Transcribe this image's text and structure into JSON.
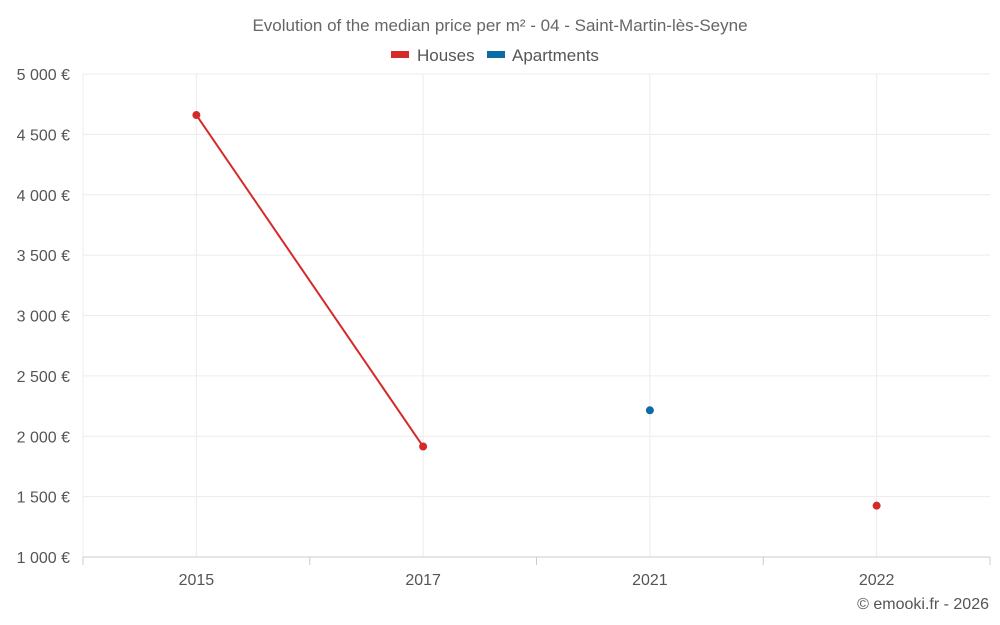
{
  "chart_data": {
    "type": "line",
    "title": "Evolution of the median price per m² - 04 - Saint-Martin-lès-Seyne",
    "categories": [
      "2015",
      "2017",
      "2021",
      "2022"
    ],
    "series": [
      {
        "name": "Houses",
        "color": "#d42a2a",
        "values": [
          4660,
          1915,
          null,
          1425
        ]
      },
      {
        "name": "Apartments",
        "color": "#0b6ba3",
        "values": [
          null,
          null,
          2215,
          null
        ]
      }
    ],
    "ylim": [
      1000,
      5000
    ],
    "ytick_labels": [
      "1 000 €",
      "1 500 €",
      "2 000 €",
      "2 500 €",
      "3 000 €",
      "3 500 €",
      "4 000 €",
      "4 500 €",
      "5 000 €"
    ],
    "ytick_values": [
      1000,
      1500,
      2000,
      2500,
      3000,
      3500,
      4000,
      4500,
      5000
    ],
    "xlabel": "",
    "ylabel": "",
    "legend_position": "top-center",
    "grid": true
  },
  "credit": "© emooki.fr - 2026"
}
